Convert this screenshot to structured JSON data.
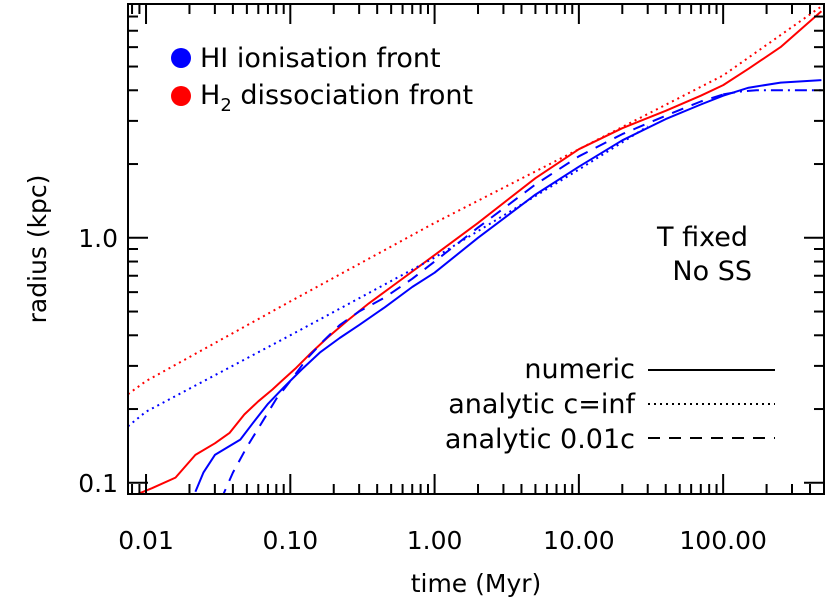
{
  "chart_data": {
    "type": "line",
    "xlabel": "time (Myr)",
    "ylabel": "radius (kpc)",
    "x_scale": "log",
    "y_scale": "log",
    "xlim": [
      0.0075,
      500
    ],
    "ylim": [
      0.09,
      9.0
    ],
    "grid": false,
    "x_ticks": [
      {
        "value": 0.01,
        "label": "0.01"
      },
      {
        "value": 0.1,
        "label": "0.10"
      },
      {
        "value": 1,
        "label": "1.00"
      },
      {
        "value": 10,
        "label": "10.00"
      },
      {
        "value": 100,
        "label": "100.00"
      }
    ],
    "y_ticks": [
      {
        "value": 0.1,
        "label": "0.1"
      },
      {
        "value": 1,
        "label": "1.0"
      }
    ],
    "legend_colors": [
      {
        "label": "HI ionisation front",
        "color": "#0000ff"
      },
      {
        "label_main": "H",
        "label_sub": "2",
        "label_rest": " dissociation front",
        "color": "#ff0000"
      }
    ],
    "legend_styles": [
      {
        "label": "numeric",
        "style": "solid"
      },
      {
        "label": "analytic c=inf",
        "style": "dotted"
      },
      {
        "label": "analytic 0.01c",
        "style": "dashed"
      }
    ],
    "annotation": [
      "T fixed",
      "No SS"
    ],
    "series": [
      {
        "front": "HI ionisation front",
        "style": "solid",
        "color": "#0000ff",
        "x": [
          0.022,
          0.025,
          0.03,
          0.037,
          0.045,
          0.055,
          0.07,
          0.09,
          0.12,
          0.16,
          0.22,
          0.3,
          0.45,
          0.7,
          1.0,
          2.0,
          5.0,
          10,
          20,
          40,
          70,
          100,
          150,
          250,
          480
        ],
        "y": [
          0.092,
          0.11,
          0.13,
          0.14,
          0.15,
          0.175,
          0.21,
          0.245,
          0.29,
          0.34,
          0.39,
          0.44,
          0.52,
          0.63,
          0.72,
          1.0,
          1.5,
          1.95,
          2.5,
          3.05,
          3.5,
          3.8,
          4.1,
          4.3,
          4.4
        ]
      },
      {
        "front": "H2 dissociation front",
        "style": "solid",
        "color": "#ff0000",
        "x": [
          0.008,
          0.011,
          0.016,
          0.022,
          0.03,
          0.038,
          0.048,
          0.06,
          0.075,
          0.09,
          0.11,
          0.14,
          0.18,
          0.25,
          0.35,
          0.5,
          1.0,
          2.0,
          5.0,
          10,
          20,
          40,
          70,
          100,
          150,
          250,
          480
        ],
        "y": [
          0.088,
          0.095,
          0.105,
          0.13,
          0.145,
          0.16,
          0.19,
          0.215,
          0.24,
          0.265,
          0.295,
          0.34,
          0.39,
          0.46,
          0.54,
          0.63,
          0.85,
          1.15,
          1.75,
          2.3,
          2.8,
          3.3,
          3.8,
          4.2,
          4.9,
          6.0,
          8.4
        ]
      },
      {
        "front": "HI ionisation front",
        "style": "dotted",
        "color": "#0000ff",
        "x": [
          0.0075,
          0.01,
          0.1,
          1.0,
          10,
          30
        ],
        "y": [
          0.17,
          0.195,
          0.4,
          0.83,
          1.9,
          2.85
        ]
      },
      {
        "front": "H2 dissociation front",
        "style": "dotted",
        "color": "#ff0000",
        "x": [
          0.0075,
          0.01,
          0.1,
          1.0,
          10,
          100,
          480
        ],
        "y": [
          0.23,
          0.26,
          0.55,
          1.15,
          2.3,
          4.6,
          8.8
        ]
      },
      {
        "front": "HI ionisation front",
        "style": "dashed",
        "color": "#0000ff",
        "x": [
          0.033,
          0.04,
          0.05,
          0.065,
          0.08,
          0.1,
          0.13,
          0.17,
          0.22,
          0.3,
          0.45,
          0.7,
          1.0,
          2.0,
          5.0,
          10,
          20,
          40,
          70,
          100
        ],
        "y": [
          0.085,
          0.11,
          0.14,
          0.18,
          0.22,
          0.26,
          0.32,
          0.38,
          0.44,
          0.5,
          0.57,
          0.68,
          0.8,
          1.1,
          1.65,
          2.15,
          2.65,
          3.15,
          3.6,
          3.85
        ]
      },
      {
        "front": "HI ionisation front",
        "style": "dashdot",
        "color": "#0000ff",
        "x": [
          100,
          130,
          170,
          220,
          300,
          480
        ],
        "y": [
          3.85,
          3.95,
          4.0,
          4.0,
          4.0,
          4.0
        ]
      }
    ]
  }
}
